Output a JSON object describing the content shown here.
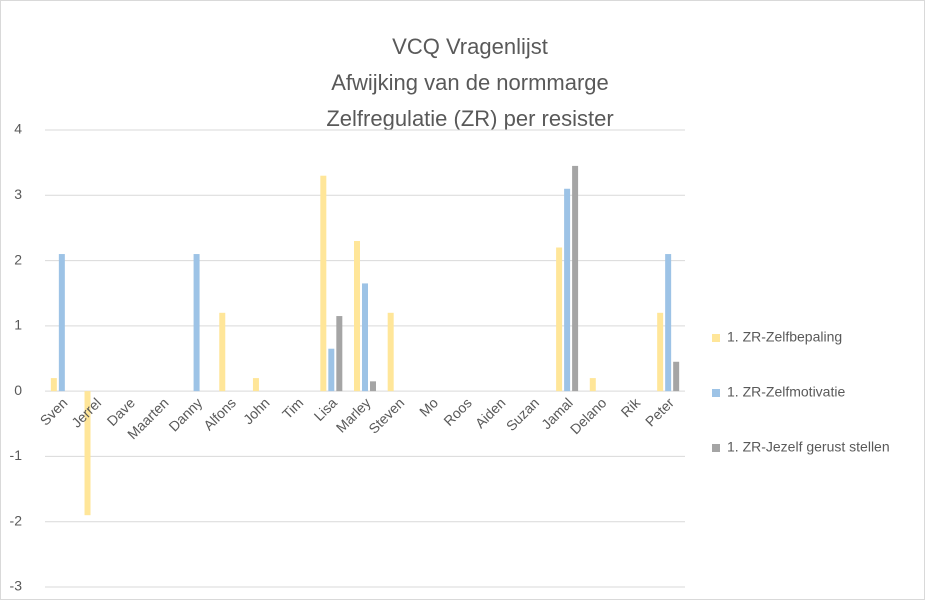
{
  "chart_data": {
    "type": "bar",
    "title": [
      "VCQ Vragenlijst",
      "Afwijking van de normmarge",
      "Zelfregulatie (ZR) per resister"
    ],
    "categories": [
      "Sven",
      "Jerrel",
      "Dave",
      "Maarten",
      "Danny",
      "Alfons",
      "John",
      "Tim",
      "Lisa",
      "Marley",
      "Steven",
      "Mo",
      "Roos",
      "Aiden",
      "Suzan",
      "Jamal",
      "Delano",
      "Rik",
      "Peter"
    ],
    "series": [
      {
        "name": "1. ZR-Zelfbepaling",
        "color": "#ffe699",
        "values": [
          0.2,
          -1.9,
          0,
          0,
          0,
          1.2,
          0.2,
          0,
          3.3,
          2.3,
          1.2,
          0,
          0,
          0,
          0,
          2.2,
          0.2,
          0,
          1.2
        ]
      },
      {
        "name": "1. ZR-Zelfmotivatie",
        "color": "#9dc3e6",
        "values": [
          2.1,
          0,
          0,
          0,
          2.1,
          0,
          0,
          0,
          0.65,
          1.65,
          0,
          0,
          0,
          0,
          0,
          3.1,
          0,
          0,
          2.1
        ]
      },
      {
        "name": "1. ZR-Jezelf gerust stellen",
        "color": "#a5a5a5",
        "values": [
          0,
          0,
          0,
          0,
          0,
          0,
          0,
          0,
          1.15,
          0.15,
          0,
          0,
          0,
          0,
          0,
          3.45,
          0,
          0,
          0.45
        ]
      }
    ],
    "ylim": [
      -3,
      4
    ],
    "yticks": [
      -3,
      -2,
      -1,
      0,
      1,
      2,
      3,
      4
    ],
    "grid": true,
    "legend": "right"
  }
}
